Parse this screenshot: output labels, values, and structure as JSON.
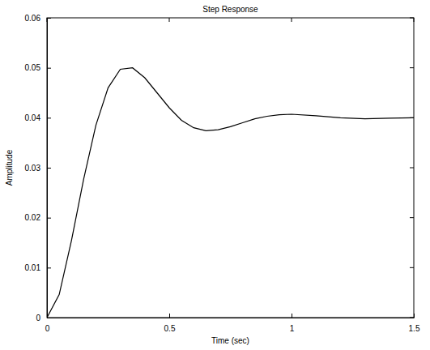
{
  "chart_data": {
    "type": "line",
    "title": "Step Response",
    "x_label": "Time (sec)",
    "y_label": "Amplitude",
    "x": [
      0,
      0.05,
      0.1,
      0.15,
      0.2,
      0.25,
      0.3,
      0.35,
      0.4,
      0.45,
      0.5,
      0.55,
      0.6,
      0.65,
      0.7,
      0.75,
      0.8,
      0.85,
      0.9,
      0.95,
      1.0,
      1.1,
      1.2,
      1.3,
      1.4,
      1.5
    ],
    "values": [
      0,
      0.0046,
      0.0154,
      0.0277,
      0.0385,
      0.046,
      0.0497,
      0.05,
      0.048,
      0.045,
      0.042,
      0.0395,
      0.038,
      0.0374,
      0.0376,
      0.0382,
      0.039,
      0.0398,
      0.0403,
      0.0406,
      0.0407,
      0.0404,
      0.04,
      0.0398,
      0.0399,
      0.04
    ],
    "color": "#000000",
    "xlim": [
      0,
      1.5
    ],
    "xticks": [
      0,
      0.5,
      1,
      1.5
    ],
    "ylim": [
      0,
      0.06
    ],
    "yticks": [
      0,
      0.01,
      0.02,
      0.03,
      0.04,
      0.05,
      0.06
    ],
    "grid": false
  }
}
